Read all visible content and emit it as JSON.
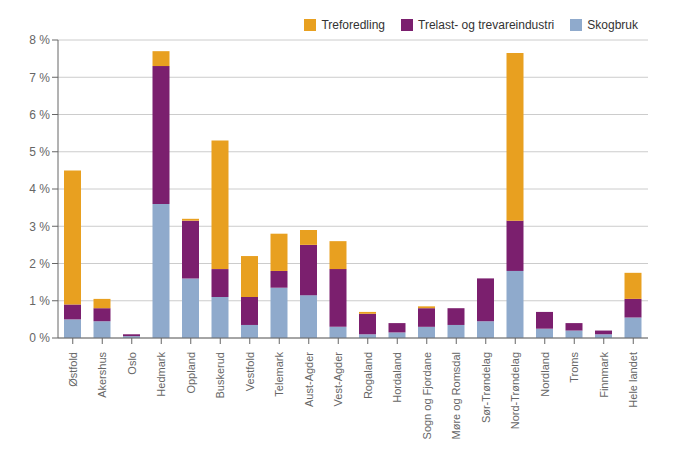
{
  "chart_data": {
    "type": "bar",
    "stacked": true,
    "categories": [
      "Østfold",
      "Akershus",
      "Oslo",
      "Hedmark",
      "Oppland",
      "Buskerud",
      "Vestfold",
      "Telemark",
      "Aust-Agder",
      "Vest-Agder",
      "Rogaland",
      "Hordaland",
      "Sogn og Fjordane",
      "Møre og Romsdal",
      "Sør-Trøndelag",
      "Nord-Trøndelag",
      "Nordland",
      "Troms",
      "Finnmark",
      "Hele landet"
    ],
    "series": [
      {
        "name": "Skogbruk",
        "color": "#8FAACC",
        "values": [
          0.5,
          0.45,
          0.05,
          3.6,
          1.6,
          1.1,
          0.35,
          1.35,
          1.15,
          0.3,
          0.1,
          0.15,
          0.3,
          0.35,
          0.45,
          1.8,
          0.25,
          0.2,
          0.1,
          0.55
        ]
      },
      {
        "name": "Trelast- og trevareindustri",
        "color": "#7B1F6E",
        "values": [
          0.4,
          0.35,
          0.05,
          3.7,
          1.55,
          0.75,
          0.75,
          0.45,
          1.35,
          1.55,
          0.55,
          0.25,
          0.5,
          0.45,
          1.15,
          1.35,
          0.45,
          0.2,
          0.1,
          0.5
        ]
      },
      {
        "name": "Treforedling",
        "color": "#E8A020",
        "values": [
          3.6,
          0.25,
          0.0,
          0.4,
          0.05,
          3.45,
          1.1,
          1.0,
          0.4,
          0.75,
          0.05,
          0.0,
          0.05,
          0.0,
          0.0,
          4.5,
          0.0,
          0.0,
          0.0,
          0.7
        ]
      }
    ],
    "ylim": [
      0,
      8
    ],
    "yticks": [
      {
        "value": 0,
        "label": "0 %"
      },
      {
        "value": 1,
        "label": "1 %"
      },
      {
        "value": 2,
        "label": "2 %"
      },
      {
        "value": 3,
        "label": "3 %"
      },
      {
        "value": 4,
        "label": "4 %"
      },
      {
        "value": 5,
        "label": "5 %"
      },
      {
        "value": 6,
        "label": "6 %"
      },
      {
        "value": 7,
        "label": "7 %"
      },
      {
        "value": 8,
        "label": "8 %"
      }
    ],
    "grid": true,
    "legend": "upper right"
  }
}
